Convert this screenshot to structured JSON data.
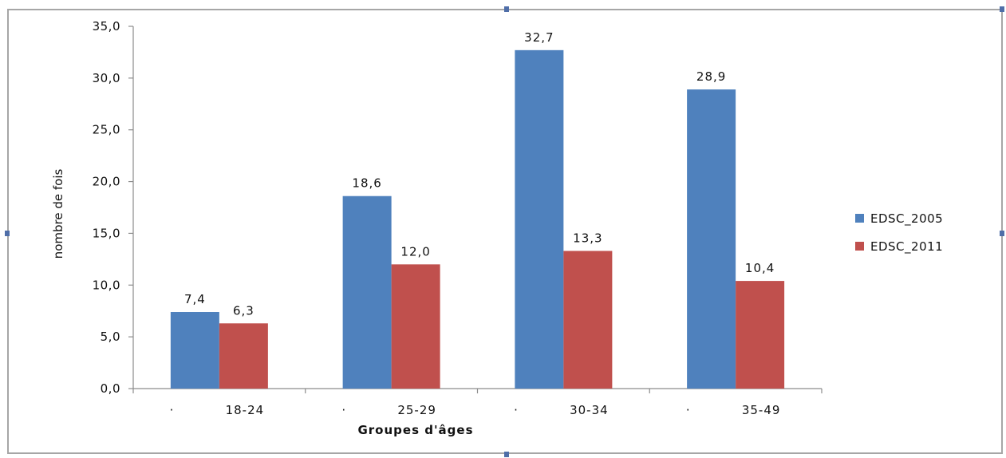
{
  "chart_data": {
    "type": "bar",
    "categories": [
      "18-24",
      "25-29",
      "30-34",
      "35-49"
    ],
    "category_prefix": "·",
    "series": [
      {
        "name": "EDSC_2005",
        "color": "#4F81BD",
        "values": [
          7.4,
          18.6,
          32.7,
          28.9
        ],
        "labels": [
          "7,4",
          "18,6",
          "32,7",
          "28,9"
        ]
      },
      {
        "name": "EDSC_2011",
        "color": "#C0504D",
        "values": [
          6.3,
          12.0,
          13.3,
          10.4
        ],
        "labels": [
          "6,3",
          "12,0",
          "13,3",
          "10,4"
        ]
      }
    ],
    "yticks": [
      0,
      5,
      10,
      15,
      20,
      25,
      30,
      35
    ],
    "ytick_labels": [
      "0,0",
      "5,0",
      "10,0",
      "15,0",
      "20,0",
      "25,0",
      "30,0",
      "35,0"
    ],
    "ylim": [
      0,
      35
    ],
    "xlabel": "Groupes d'âges",
    "ylabel": "nombre de fois",
    "grid": false,
    "legend_position": "right"
  }
}
